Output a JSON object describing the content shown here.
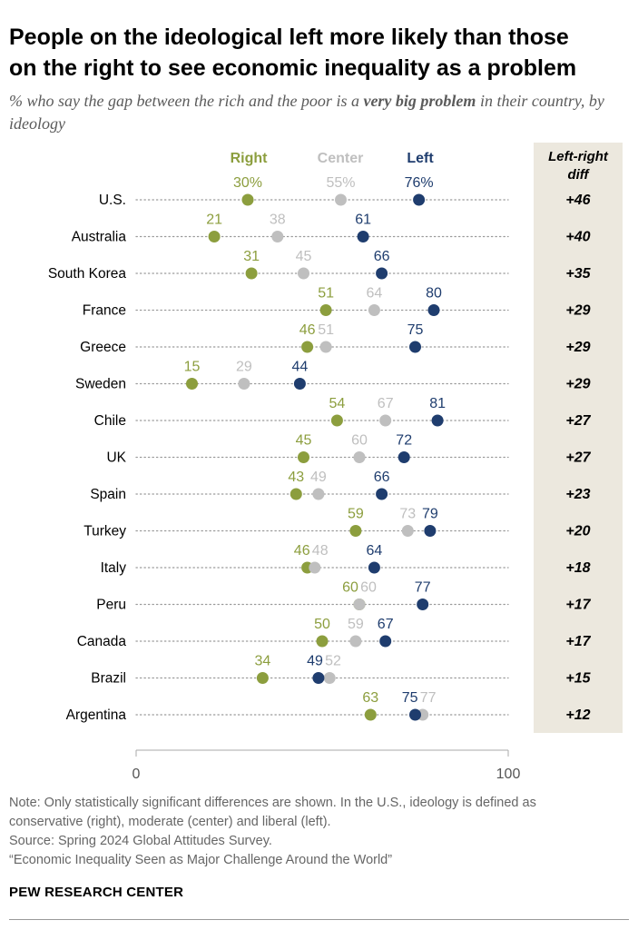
{
  "title_line1": "People on the ideological left more likely than those",
  "title_line2": "on the right to see economic inequality as a problem",
  "subtitle_pre": "% who say the gap between the rich and the poor is a ",
  "subtitle_bold": "very big problem",
  "subtitle_post": " in their country, by ideology",
  "colors": {
    "Right": "#8c9e3e",
    "Center": "#bfbfbf",
    "Left": "#1f3d6e",
    "diff_bg": "#ece8de",
    "dots_line": "#9a9a9a"
  },
  "chart_data": {
    "type": "scatter",
    "title": "People on the ideological left more likely than those on the right to see economic inequality as a problem",
    "categories": [
      "U.S.",
      "Australia",
      "South Korea",
      "France",
      "Greece",
      "Sweden",
      "Chile",
      "UK",
      "Spain",
      "Turkey",
      "Italy",
      "Peru",
      "Canada",
      "Brazil",
      "Argentina"
    ],
    "series": [
      {
        "name": "Right",
        "values": [
          30,
          21,
          31,
          51,
          46,
          15,
          54,
          45,
          43,
          59,
          46,
          60,
          50,
          34,
          63
        ]
      },
      {
        "name": "Center",
        "values": [
          55,
          38,
          45,
          64,
          51,
          29,
          67,
          60,
          49,
          73,
          48,
          60,
          59,
          52,
          77
        ]
      },
      {
        "name": "Left",
        "values": [
          76,
          61,
          66,
          80,
          75,
          44,
          81,
          72,
          66,
          79,
          64,
          77,
          67,
          49,
          75
        ]
      }
    ],
    "diff_header_line1": "Left-right",
    "diff_header_line2": "diff",
    "diffs": [
      "+46",
      "+40",
      "+35",
      "+29",
      "+29",
      "+29",
      "+27",
      "+27",
      "+23",
      "+20",
      "+18",
      "+17",
      "+17",
      "+15",
      "+12"
    ],
    "xlim": [
      0,
      100
    ],
    "axis_min_label": "0",
    "axis_max_label": "100"
  },
  "notes": {
    "note_line1": "Note: Only statistically significant differences are shown. In the U.S., ideology is defined as",
    "note_line2": "conservative (right), moderate (center) and liberal (left).",
    "source": "Source: Spring 2024 Global Attitudes Survey.",
    "report": "“Economic Inequality Seen as Major Challenge Around the World”"
  },
  "brand": "PEW RESEARCH CENTER"
}
